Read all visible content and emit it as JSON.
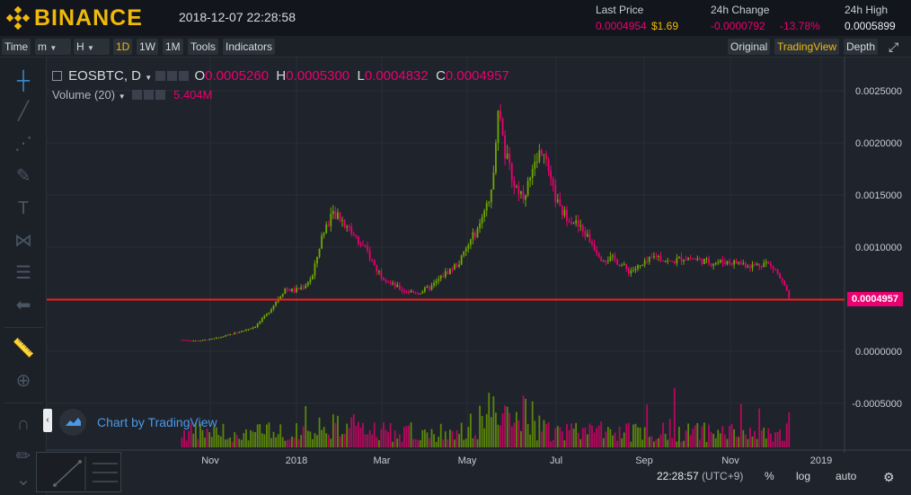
{
  "header": {
    "brand": "BINANCE",
    "datetime": "2018-12-07 22:28:58",
    "last_price_label": "Last Price",
    "last_price": "0.0004954",
    "last_price_usd": "$1.69",
    "change_label": "24h Change",
    "change_value": "-0.0000792",
    "change_pct": "-13.78%",
    "high_label": "24h High",
    "high_value": "0.0005899"
  },
  "toolbar": {
    "time": "Time",
    "m": "m",
    "h": "H",
    "d1": "1D",
    "w1": "1W",
    "mo1": "1M",
    "tools": "Tools",
    "indicators": "Indicators",
    "original": "Original",
    "tradingview": "TradingView",
    "depth": "Depth"
  },
  "legend": {
    "symbol": "EOSBTC, D",
    "o_label": "O",
    "o": "0.0005260",
    "h_label": "H",
    "h": "0.0005300",
    "l_label": "L",
    "l": "0.0004832",
    "c_label": "C",
    "c": "0.0004957",
    "volume_label": "Volume (20)",
    "volume_value": "5.404M"
  },
  "branding": {
    "chart_by": "Chart by TradingView"
  },
  "bottom": {
    "time": "22:28:57",
    "tz": "(UTC+9)",
    "pct": "%",
    "log": "log",
    "auto": "auto"
  },
  "price_tag": "0.0004957",
  "colors": {
    "up": "#70a800",
    "down": "#ea0070",
    "accent": "#f0b90b",
    "line": "#ff1a1a"
  },
  "chart_data": {
    "type": "candlestick",
    "symbol": "EOSBTC",
    "interval": "1D",
    "y_ticks": [
      "0.0025000",
      "0.0020000",
      "0.0015000",
      "0.0010000",
      "0.0005000",
      "0.0000000",
      "-0.0005000"
    ],
    "x_ticks": [
      "Nov",
      "2018",
      "Mar",
      "May",
      "Jul",
      "Sep",
      "Nov",
      "2019"
    ],
    "ylim": [
      -0.0006,
      0.0026
    ],
    "last_price_line": 0.0004957,
    "close_path": [
      [
        0,
        0.00011
      ],
      [
        8,
        0.0001
      ],
      [
        15,
        0.00012
      ],
      [
        22,
        0.00016
      ],
      [
        28,
        0.0002
      ],
      [
        33,
        0.00024
      ],
      [
        38,
        0.00035
      ],
      [
        42,
        0.00048
      ],
      [
        46,
        0.0006
      ],
      [
        50,
        0.00058
      ],
      [
        54,
        0.00062
      ],
      [
        58,
        0.00072
      ],
      [
        62,
        0.0011
      ],
      [
        66,
        0.0013
      ],
      [
        70,
        0.00128
      ],
      [
        74,
        0.00118
      ],
      [
        78,
        0.00105
      ],
      [
        82,
        0.00095
      ],
      [
        86,
        0.00078
      ],
      [
        92,
        0.00065
      ],
      [
        98,
        0.00058
      ],
      [
        104,
        0.00056
      ],
      [
        110,
        0.00062
      ],
      [
        116,
        0.00075
      ],
      [
        122,
        0.00085
      ],
      [
        128,
        0.0011
      ],
      [
        132,
        0.00125
      ],
      [
        136,
        0.0015
      ],
      [
        139,
        0.00235
      ],
      [
        142,
        0.0019
      ],
      [
        146,
        0.0016
      ],
      [
        150,
        0.0015
      ],
      [
        154,
        0.0017
      ],
      [
        158,
        0.00195
      ],
      [
        162,
        0.0016
      ],
      [
        166,
        0.00135
      ],
      [
        172,
        0.00125
      ],
      [
        178,
        0.0011
      ],
      [
        184,
        0.0009
      ],
      [
        190,
        0.00088
      ],
      [
        196,
        0.00077
      ],
      [
        202,
        0.00082
      ],
      [
        208,
        0.00092
      ],
      [
        214,
        0.00085
      ],
      [
        220,
        0.0009
      ],
      [
        226,
        0.00088
      ],
      [
        232,
        0.00085
      ],
      [
        238,
        0.00086
      ],
      [
        244,
        0.00085
      ],
      [
        250,
        0.00082
      ],
      [
        256,
        0.00085
      ],
      [
        260,
        0.00078
      ],
      [
        264,
        0.00062
      ],
      [
        266,
        0.0005
      ]
    ]
  }
}
